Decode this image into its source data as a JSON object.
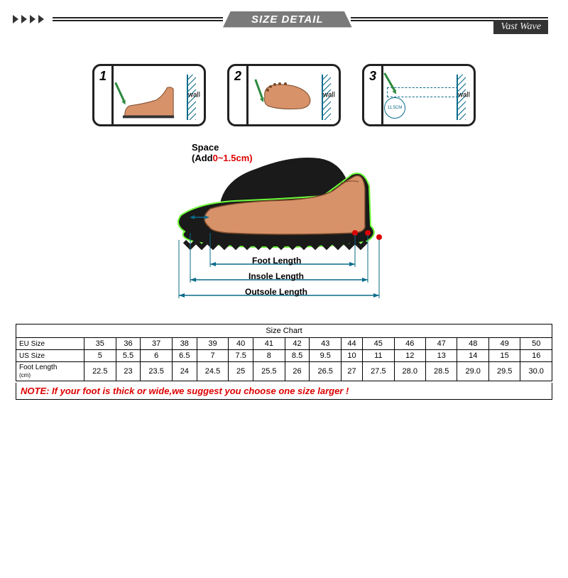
{
  "header": {
    "title": "SIZE DETAIL",
    "brand": "Vast Wave"
  },
  "steps": {
    "s1": {
      "num": "1",
      "wall": "wall"
    },
    "s2": {
      "num": "2",
      "wall": "wall"
    },
    "s3": {
      "num": "3",
      "wall": "wall",
      "circle": "11.5CM"
    }
  },
  "diagram": {
    "space_label": "Space",
    "add_label": "(Add",
    "add_range": "0~1.5cm",
    "close_paren": ")",
    "foot_length": "Foot Length",
    "insole_length": "Insole Length",
    "outsole_length": "Outsole Length",
    "colors": {
      "foot_fill": "#d8926a",
      "shoe_fill": "#1a1a1a",
      "outline": "#6eff3a",
      "dim_line": "#0a6b8a",
      "space_range": "#d00000"
    }
  },
  "table": {
    "title": "Size Chart",
    "rows": [
      {
        "label": "EU Size",
        "sublabel": "",
        "vals": [
          "35",
          "36",
          "37",
          "38",
          "39",
          "40",
          "41",
          "42",
          "43",
          "44",
          "45",
          "46",
          "47",
          "48",
          "49",
          "50"
        ]
      },
      {
        "label": "US Size",
        "sublabel": "",
        "vals": [
          "5",
          "5.5",
          "6",
          "6.5",
          "7",
          "7.5",
          "8",
          "8.5",
          "9.5",
          "10",
          "11",
          "12",
          "13",
          "14",
          "15",
          "16"
        ]
      },
      {
        "label": "Foot Length",
        "sublabel": "(cm)",
        "vals": [
          "22.5",
          "23",
          "23.5",
          "24",
          "24.5",
          "25",
          "25.5",
          "26",
          "26.5",
          "27",
          "27.5",
          "28.0",
          "28.5",
          "29.0",
          "29.5",
          "30.0"
        ]
      }
    ]
  },
  "note": "NOTE: If your foot is thick or wide,we suggest you choose one size larger !"
}
